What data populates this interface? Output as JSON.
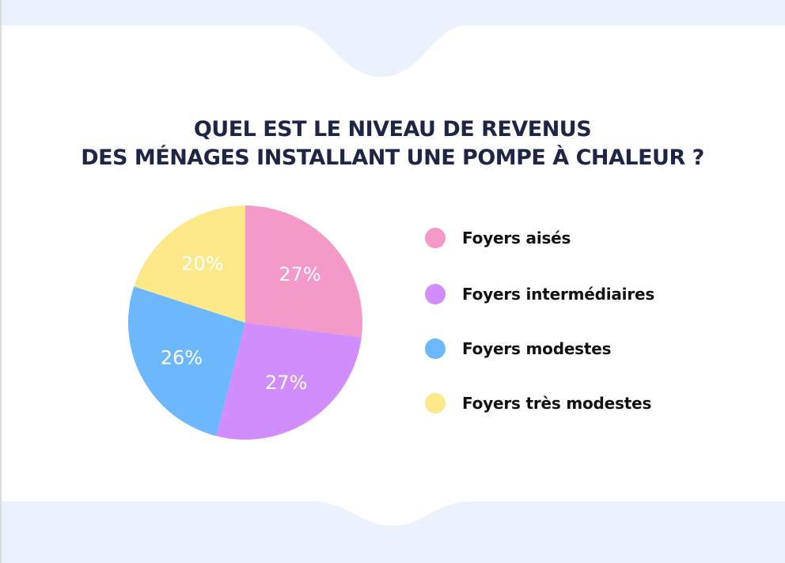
{
  "chart_data": {
    "type": "pie",
    "title_lines": [
      "QUEL EST LE NIVEAU DE REVENUS",
      "DES MÉNAGES INSTALLANT UNE POMPE À CHALEUR ?"
    ],
    "categories": [
      "Foyers aisés",
      "Foyers intermédiaires",
      "Foyers modestes",
      "Foyers très modestes"
    ],
    "values": [
      27,
      27,
      26,
      20
    ],
    "value_labels": [
      "27%",
      "27%",
      "26%",
      "20%"
    ],
    "colors": [
      "#f49ac8",
      "#d28dfc",
      "#6db8fd",
      "#fde98a"
    ],
    "legend": "right"
  },
  "background": {
    "page": "#ffffff",
    "band": "#ebf2fd"
  }
}
